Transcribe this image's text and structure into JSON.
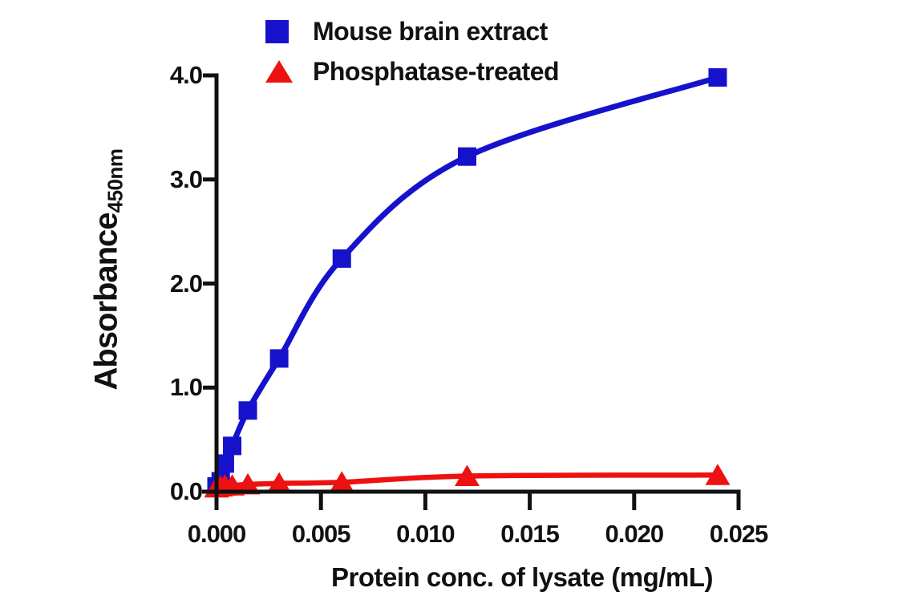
{
  "chart_data": {
    "type": "line",
    "title": "",
    "xlabel": "Protein conc. of lysate (mg/mL)",
    "ylabel": "Absorbance",
    "ylabel_subscript": "450nm",
    "xlim": [
      0,
      0.025
    ],
    "ylim": [
      0,
      4.0
    ],
    "x_ticks": [
      0,
      0.005,
      0.01,
      0.015,
      0.02,
      0.025
    ],
    "x_tick_labels": [
      "0.000",
      "0.005",
      "0.010",
      "0.015",
      "0.020",
      "0.025"
    ],
    "y_ticks": [
      0.0,
      1.0,
      2.0,
      3.0,
      4.0
    ],
    "y_tick_labels": [
      "0.0",
      "1.0",
      "2.0",
      "3.0",
      "4.0"
    ],
    "grid": false,
    "legend_position": "top-left",
    "series": [
      {
        "name": "Mouse brain extract",
        "marker": "square",
        "color": "#1612CC",
        "x": [
          0,
          0.0002,
          0.0004,
          0.00075,
          0.0015,
          0.003,
          0.006,
          0.012,
          0.024
        ],
        "y": [
          0.05,
          0.1,
          0.27,
          0.44,
          0.78,
          1.28,
          2.24,
          3.22,
          3.98
        ]
      },
      {
        "name": "Phosphatase-treated",
        "marker": "triangle",
        "color": "#EE1111",
        "x": [
          0,
          0.0002,
          0.0004,
          0.00075,
          0.0015,
          0.003,
          0.006,
          0.012,
          0.024
        ],
        "y": [
          0.04,
          0.05,
          0.06,
          0.06,
          0.07,
          0.08,
          0.09,
          0.15,
          0.16
        ]
      }
    ]
  },
  "colors": {
    "series_blue": "#1612CC",
    "series_red": "#EE1111",
    "axis": "#111111",
    "background": "#ffffff"
  }
}
